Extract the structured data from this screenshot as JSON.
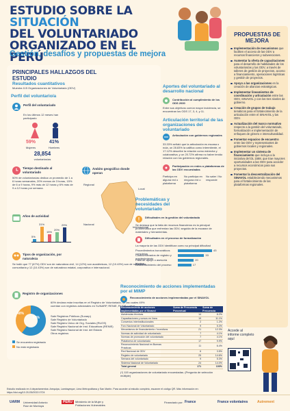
{
  "header": {
    "title_line1_a": "ESTUDIO SOBRE LA",
    "title_line1_b": "SITUACIÓN",
    "title_line2": "DEL VOLUNTARIADO",
    "title_line3": "ORGANIZADO EN EL PERÚ",
    "subtitle": "Gestión, desafíos y propuestas de mejora"
  },
  "hallazgos": {
    "title": "PRINCIPALES HALLAZGOS DEL ESTUDIO",
    "subtitle": "Resultados cuantitativos",
    "sample_note": "Muestra 115 Organizaciones de Voluntariado (ODV)"
  },
  "perfil": {
    "heading": "Perfil del voluntario/a",
    "label": "Perfil del voluntariado",
    "last12": "En los últimos 12 meses han participado",
    "mujeres_pct": "59%",
    "hombres_pct": "41%",
    "mujeres_label": "Mujeres",
    "hombres_label": "Hombres",
    "total": "28,854",
    "total_label": "voluntarios/as"
  },
  "tiempo": {
    "label": "Tiempo destinado al voluntariado",
    "text": "50% de voluntarios/as dedica un promedio de 1 a 6 horas semanales, 20% menos de 3 horas, 15% de 6 a 9 horas, 9% más de 12 horas y 6% más de 9 a 12 horas por semana."
  },
  "actividad": {
    "label": "Años de actividad",
    "bars": [
      {
        "pct": "5%",
        "value": 5
      },
      {
        "pct": "31%",
        "value": 31
      },
      {
        "pct": "15%",
        "value": 15
      },
      {
        "pct": "20%",
        "value": 20
      },
      {
        "pct": "29%",
        "value": 29
      }
    ]
  },
  "ambito": {
    "label": "Ámbito geográfico donde operan",
    "regional": "Regional",
    "local": "Local",
    "nacional": "Nacional",
    "internacional": "Internacional"
  },
  "tipos": {
    "label": "Tipos de organización, por naturaleza",
    "text": "Se halló que 77 (67%) ODV son de naturaleza civil, 14 (12%) son académicas, 12 (10.43%) son de naturaleza comunitaria y 12 (10.43%) son de naturaleza estatal, corporativa e internacional."
  },
  "registro": {
    "label": "Registro de organizaciones",
    "intro": "60% declara estar inscritas en el Registro de Voluntariado, de las cuales 49% cuentan con registros adicionales en SUNARP, RENIE, RUOS y otros.",
    "legend_a": "Se encuentra registrada",
    "legend_b": "No está registrada",
    "pie_a": "60%",
    "pie_b": "40%",
    "rows": [
      "Sale Registros Públicos (Sunarp)",
      "Sale Registro de Voluntariado",
      "Sale Registro Único de Org. Sociales (RUOS)",
      "Sale Registro Nacional de Inst. Educativas (RENIE)",
      "Sale Registro Nacional de Inst. del Estado",
      "Otros registros"
    ]
  },
  "aportes": {
    "heading": "Aportes del voluntariado al desarrollo nacional",
    "line": "Contribución al cumplimiento de los ODS 2030",
    "text": "Entre sus objetivos común mayor incidencia, se encuentran los ODS 17, 3, 4, y 11."
  },
  "articulacion": {
    "heading": "Articulación territorial de las organizaciones del voluntariado",
    "line": "Articulación con gobiernos regionales",
    "text": "33.33% señaló que la articulación es escasa o nula, un 28.83% la califica como intermitente, el 17.12% describe la relación como estrecha y colaborativa, y un 20.72% afirma no haber tenido relación con los gobiernos regionales."
  },
  "participacion": {
    "line": "Participación en redes o plataformas de las ODV encuestadas",
    "a": "Participa en alguna red o plataforma",
    "b": "No participa en ninguna red o plataforma",
    "c": "No sabe / No responde"
  },
  "problematicas": {
    "heading": "Problemáticas y necesidades del voluntariado",
    "line1": "Dificultades en la gestión del voluntariado",
    "text1": "Se destaca que la falta de recursos financieros es la principal problemática que enfrentan las ODV, seguida de la escasez de materiales y herramientas.",
    "line2": "Dificultades en el proceso de formalización",
    "text2": "La mayoría de las ODV identifican como su principal dificultad",
    "rows": [
      {
        "label": "Procedimientos burocráticos complejos",
        "value": 43
      },
      {
        "label": "Costos elevados de registro y mantenimiento",
        "value": 33
      },
      {
        "label": "Falta de apoyo o asesoría técnica",
        "value": 20
      },
      {
        "label": "Desconocimiento del proceso",
        "value": 17
      }
    ]
  },
  "reconocimiento": {
    "heading": "Reconocimiento de acciones implementadas por el MIMP",
    "line": "Reconocimiento de acciones implementadas por el SINAVOL",
    "col1": "Reconocimiento de acciones implementadas por el Sinavol",
    "col2": "Suma de Frecuencia Porcentual",
    "col3": "Suma de Frecuencia",
    "rows": [
      [
        "Asistencias técnicas",
        "14",
        "8.2%"
      ],
      [
        "Capacitaciones y cursos en línea",
        "19",
        "11.1%"
      ],
      [
        "Convenios interinstitucionales",
        "2",
        "1.2%"
      ],
      [
        "Foro Nacional de Voluntariado",
        "9",
        "5.3%"
      ],
      [
        "Mecanismos de financiamiento / incentivos",
        "21",
        "12.3%"
      ],
      [
        "Normas de actividad de voluntariado",
        "7",
        "4.1%"
      ],
      [
        "Normas de promoción del voluntariado",
        "7",
        "4.1%"
      ],
      [
        "Plataforma de voluntariado",
        "17",
        "9.9%"
      ],
      [
        "Reconocimiento Nacional en Buenas Prácticas",
        "11",
        "6.4%"
      ],
      [
        "Red Nacional de ODV",
        "6",
        "3.5%"
      ],
      [
        "Registro de voluntariado",
        "25",
        "14.6%"
      ],
      [
        "Semana del voluntariado",
        "9",
        "5.3%"
      ],
      [
        "Sistema Nacional de Voluntariado",
        "24",
        "14.0%"
      ]
    ],
    "total": [
      "Total general",
      "171",
      "100%"
    ],
    "note": "(*) 115 organizaciones de voluntariado encuestadas. (Pregunta de selección múltiple)"
  },
  "propuestas": {
    "title": "PROPUESTAS DE MEJORA",
    "items": [
      {
        "b": "Implementación de mecanismos",
        "t": " que faciliten el acceso de las ODV a recursos financieros y subvenciones."
      },
      {
        "b": "Aumentar la oferta de capacitaciones",
        "t": " para el desarrollo de habilidades de los voluntarios/as y las ODV, a través de talleres de gestión de proyectos, acceso a financiamiento, operaciones logísticas y gestión de proyectos."
      },
      {
        "b": "Apoyo a las organizaciones",
        "t": " en la creación de alianzas estratégicas."
      },
      {
        "b": "Implementar lineamientos de coordinación y articulación",
        "t": " entre las ODV, SINAVOL y con los tres niveles de gobierno."
      },
      {
        "b": "Creación de grupos de trabajo",
        "t": " temáticos para el fortalecimiento de la articulación entre el SINAVOL y las ODV."
      },
      {
        "b": "Actualización del marco normativo",
        "t": " respecto a la gestión del voluntariado, formalización e implementación de enfoques de género e interculturalidad."
      },
      {
        "b": "Fomentar espacios de encuentro",
        "t": " entre las ODV y representantes de gobiernos locales y regionales."
      },
      {
        "b": "Implementar un sistema de financiamiento",
        "t": " que incluya a la iniciativa del DL 1588, que trae mayores oportunidades a las ODV para acceder a recursos económicos para sus proyectos."
      },
      {
        "b": "Fomentar la descentralización del SINAVOL",
        "t": " estableciendo mecanismos para el fortalecimiento de las plataformas regionales."
      }
    ]
  },
  "qr": {
    "text": "Accede al informe completo aquí"
  },
  "source": "Estudio realizado en 4 departamentos: Arequipa, Lambayeque, Lima Metropolitana y San Martín. Para acceder al estudio completo, escanee el código QR. Más información en: https://doi.org/10.21135/2022.0724",
  "footer": {
    "uarm": "UARM",
    "uarm_sub": "Universidad Antonio Ruiz de Montoya",
    "peru": "PERÚ",
    "ministerio": "Ministerio de la Mujer y Poblaciones Vulnerables",
    "financiado": "Financiado por:",
    "france": "France",
    "fv": "France volontaires",
    "autre": "Autrement"
  }
}
